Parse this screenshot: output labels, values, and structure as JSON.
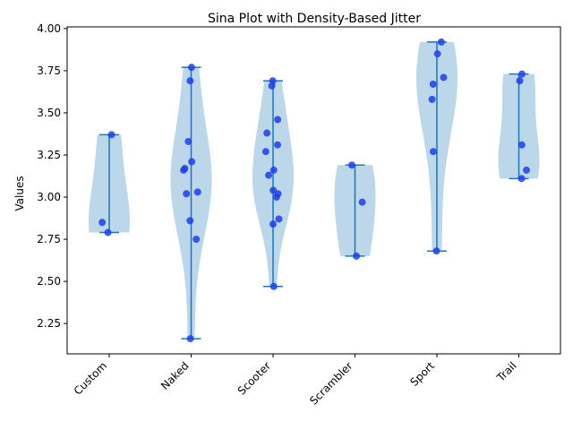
{
  "chart_data": {
    "type": "violin",
    "title": "Sina Plot with Density-Based Jitter",
    "xlabel": "",
    "ylabel": "Values",
    "ylim": [
      2.07,
      4.01
    ],
    "yticks": [
      "2.25",
      "2.50",
      "2.75",
      "3.00",
      "3.25",
      "3.50",
      "3.75",
      "4.00"
    ],
    "ytick_values": [
      2.25,
      2.5,
      2.75,
      3.0,
      3.25,
      3.5,
      3.75,
      4.0
    ],
    "categories": [
      "Custom",
      "Naked",
      "Scooter",
      "Scrambler",
      "Sport",
      "Trail"
    ],
    "grid": false,
    "colors": {
      "violin_fill": "#bcd6ea",
      "violin_line": "#1f77b4",
      "points": "#1f3fe6"
    },
    "groups": [
      {
        "name": "Custom",
        "min": 2.79,
        "max": 3.37,
        "points": [
          3.37,
          2.85,
          2.79
        ]
      },
      {
        "name": "Naked",
        "min": 2.16,
        "max": 3.77,
        "points": [
          3.77,
          3.69,
          3.33,
          3.21,
          3.17,
          3.16,
          3.03,
          3.02,
          2.86,
          2.75,
          2.16
        ]
      },
      {
        "name": "Scooter",
        "min": 2.47,
        "max": 3.69,
        "points": [
          3.69,
          3.66,
          3.46,
          3.38,
          3.31,
          3.27,
          3.16,
          3.13,
          3.04,
          3.02,
          3.0,
          2.87,
          2.84,
          2.47
        ]
      },
      {
        "name": "Scrambler",
        "min": 2.65,
        "max": 3.19,
        "points": [
          3.19,
          2.97,
          2.65
        ]
      },
      {
        "name": "Sport",
        "min": 2.68,
        "max": 3.92,
        "points": [
          3.92,
          3.85,
          3.71,
          3.67,
          3.58,
          3.27,
          2.68
        ]
      },
      {
        "name": "Trail",
        "min": 3.11,
        "max": 3.73,
        "points": [
          3.73,
          3.69,
          3.31,
          3.16,
          3.11
        ]
      }
    ]
  }
}
